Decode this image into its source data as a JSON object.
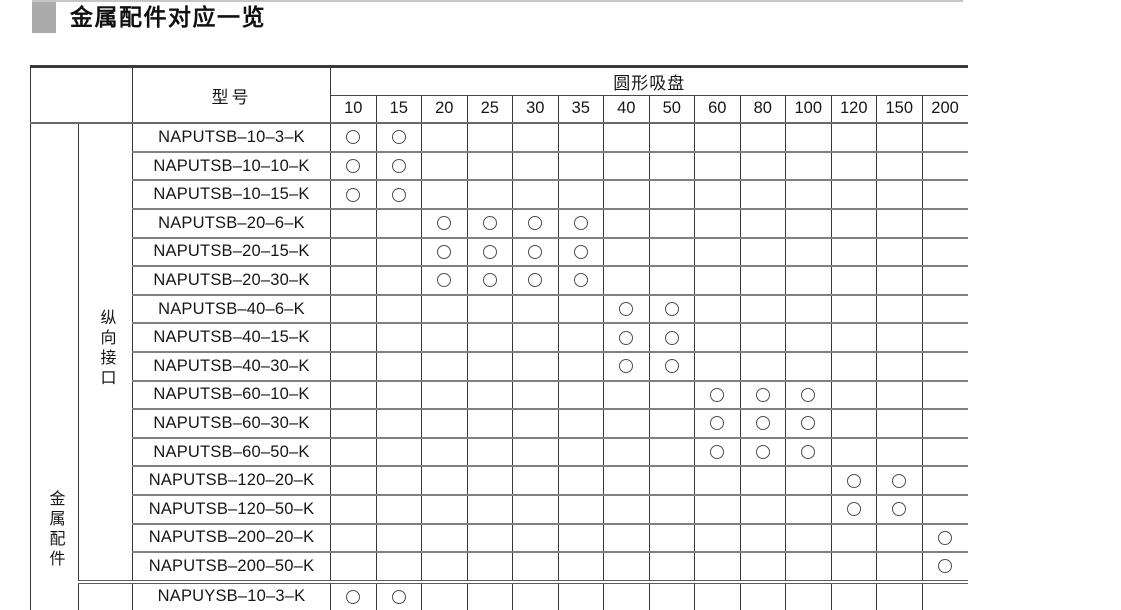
{
  "page": {
    "title": "金属配件对应一览"
  },
  "colors": {
    "title_marker": "#ababab",
    "top_rule": "#c6c6c6",
    "grid_horizontal": "#808080",
    "grid_vertical": "#383838",
    "table_top_border": "#3a3a3a",
    "circle_mark": "#4f4f4f"
  },
  "table": {
    "model_header": "型号",
    "group_header": "圆形吸盘",
    "sizes": [
      "10",
      "15",
      "20",
      "25",
      "30",
      "35",
      "40",
      "50",
      "60",
      "80",
      "100",
      "120",
      "150",
      "200"
    ],
    "row_group_label": "金属配件",
    "subgroup_label": "纵向接口",
    "mark_symbol": "○",
    "rows": [
      {
        "model": "NAPUTSB–10–3–K",
        "marks": [
          "10",
          "15"
        ]
      },
      {
        "model": "NAPUTSB–10–10–K",
        "marks": [
          "10",
          "15"
        ]
      },
      {
        "model": "NAPUTSB–10–15–K",
        "marks": [
          "10",
          "15"
        ]
      },
      {
        "model": "NAPUTSB–20–6–K",
        "marks": [
          "20",
          "25",
          "30",
          "35"
        ]
      },
      {
        "model": "NAPUTSB–20–15–K",
        "marks": [
          "20",
          "25",
          "30",
          "35"
        ]
      },
      {
        "model": "NAPUTSB–20–30–K",
        "marks": [
          "20",
          "25",
          "30",
          "35"
        ]
      },
      {
        "model": "NAPUTSB–40–6–K",
        "marks": [
          "40",
          "50"
        ]
      },
      {
        "model": "NAPUTSB–40–15–K",
        "marks": [
          "40",
          "50"
        ]
      },
      {
        "model": "NAPUTSB–40–30–K",
        "marks": [
          "40",
          "50"
        ]
      },
      {
        "model": "NAPUTSB–60–10–K",
        "marks": [
          "60",
          "80",
          "100"
        ]
      },
      {
        "model": "NAPUTSB–60–30–K",
        "marks": [
          "60",
          "80",
          "100"
        ]
      },
      {
        "model": "NAPUTSB–60–50–K",
        "marks": [
          "60",
          "80",
          "100"
        ]
      },
      {
        "model": "NAPUTSB–120–20–K",
        "marks": [
          "120",
          "150"
        ]
      },
      {
        "model": "NAPUTSB–120–50–K",
        "marks": [
          "120",
          "150"
        ]
      },
      {
        "model": "NAPUTSB–200–20–K",
        "marks": [
          "200"
        ]
      },
      {
        "model": "NAPUTSB–200–50–K",
        "marks": [
          "200"
        ]
      },
      {
        "model": "NAPUYSB–10–3–K",
        "marks": [
          "10",
          "15"
        ],
        "divider_before": true
      }
    ]
  }
}
